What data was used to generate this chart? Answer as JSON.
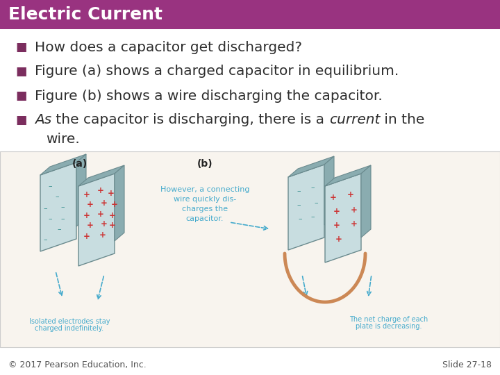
{
  "title": "Electric Current",
  "title_bg_color": "#993380",
  "title_text_color": "#ffffff",
  "title_fontsize": 18,
  "bg_color": "#ffffff",
  "bullet_color": "#7b2d5e",
  "bullet_symbol": "■",
  "text_color": "#2d2d2d",
  "bullet_fontsize": 14.5,
  "footer_left": "© 2017 Pearson Education, Inc.",
  "footer_right": "Slide 27-18",
  "footer_color": "#555555",
  "footer_fontsize": 9,
  "plate_face_color": "#c8dde0",
  "plate_edge_color": "#6a8a8e",
  "plate_side_color": "#8aacb0",
  "minus_color": "#3a9090",
  "plus_color": "#cc3333",
  "wire_color": "#cc8855",
  "arrow_color": "#44aacc",
  "caption_color": "#44aacc",
  "text_desc_color": "#44aacc"
}
